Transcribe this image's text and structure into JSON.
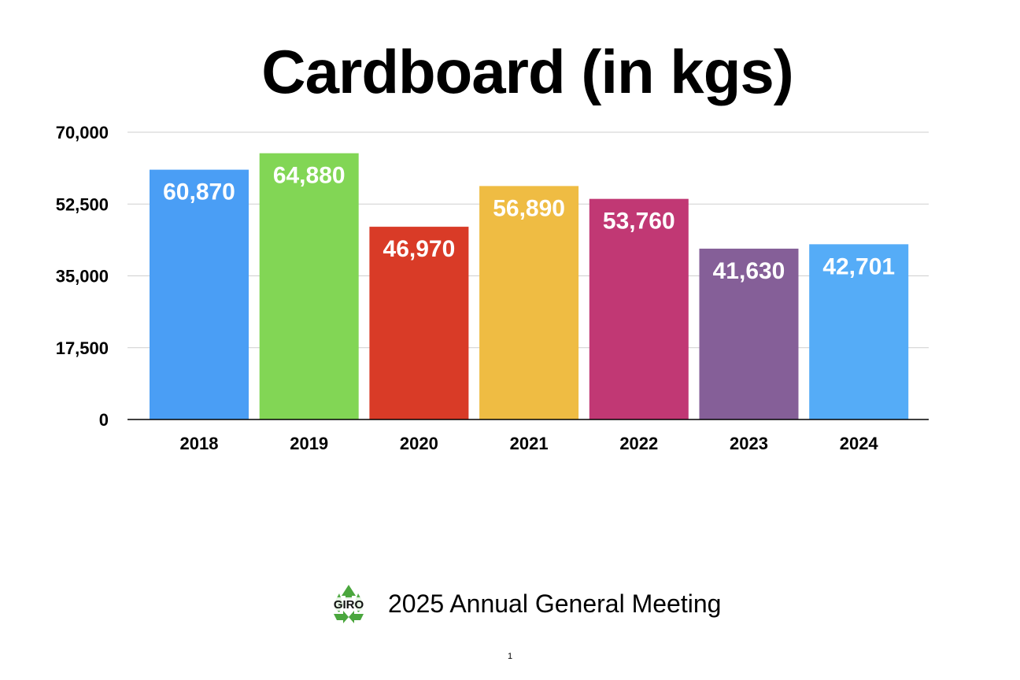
{
  "chart_data": {
    "type": "bar",
    "title": "Cardboard (in kgs)",
    "categories": [
      "2018",
      "2019",
      "2020",
      "2021",
      "2022",
      "2023",
      "2024"
    ],
    "values": [
      60870,
      64880,
      46970,
      56890,
      53760,
      41630,
      42701
    ],
    "value_labels": [
      "60,870",
      "64,880",
      "46,970",
      "56,890",
      "53,760",
      "41,630",
      "42,701"
    ],
    "colors": [
      "#4a9ef5",
      "#82d655",
      "#d93b27",
      "#efbc43",
      "#c13874",
      "#855f98",
      "#55acf7"
    ],
    "yticks": [
      0,
      17500,
      35000,
      52500,
      70000
    ],
    "ytick_labels": [
      "0",
      "17,500",
      "35,000",
      "52,500",
      "70,000"
    ],
    "ylim": [
      0,
      70000
    ],
    "xlabel": "",
    "ylabel": "",
    "grid": true,
    "legend": "none"
  },
  "footer": {
    "text": "2025 Annual General Meeting",
    "logo_text": "GIRO",
    "logo_icon": "recycle-icon"
  },
  "page_number": "1"
}
